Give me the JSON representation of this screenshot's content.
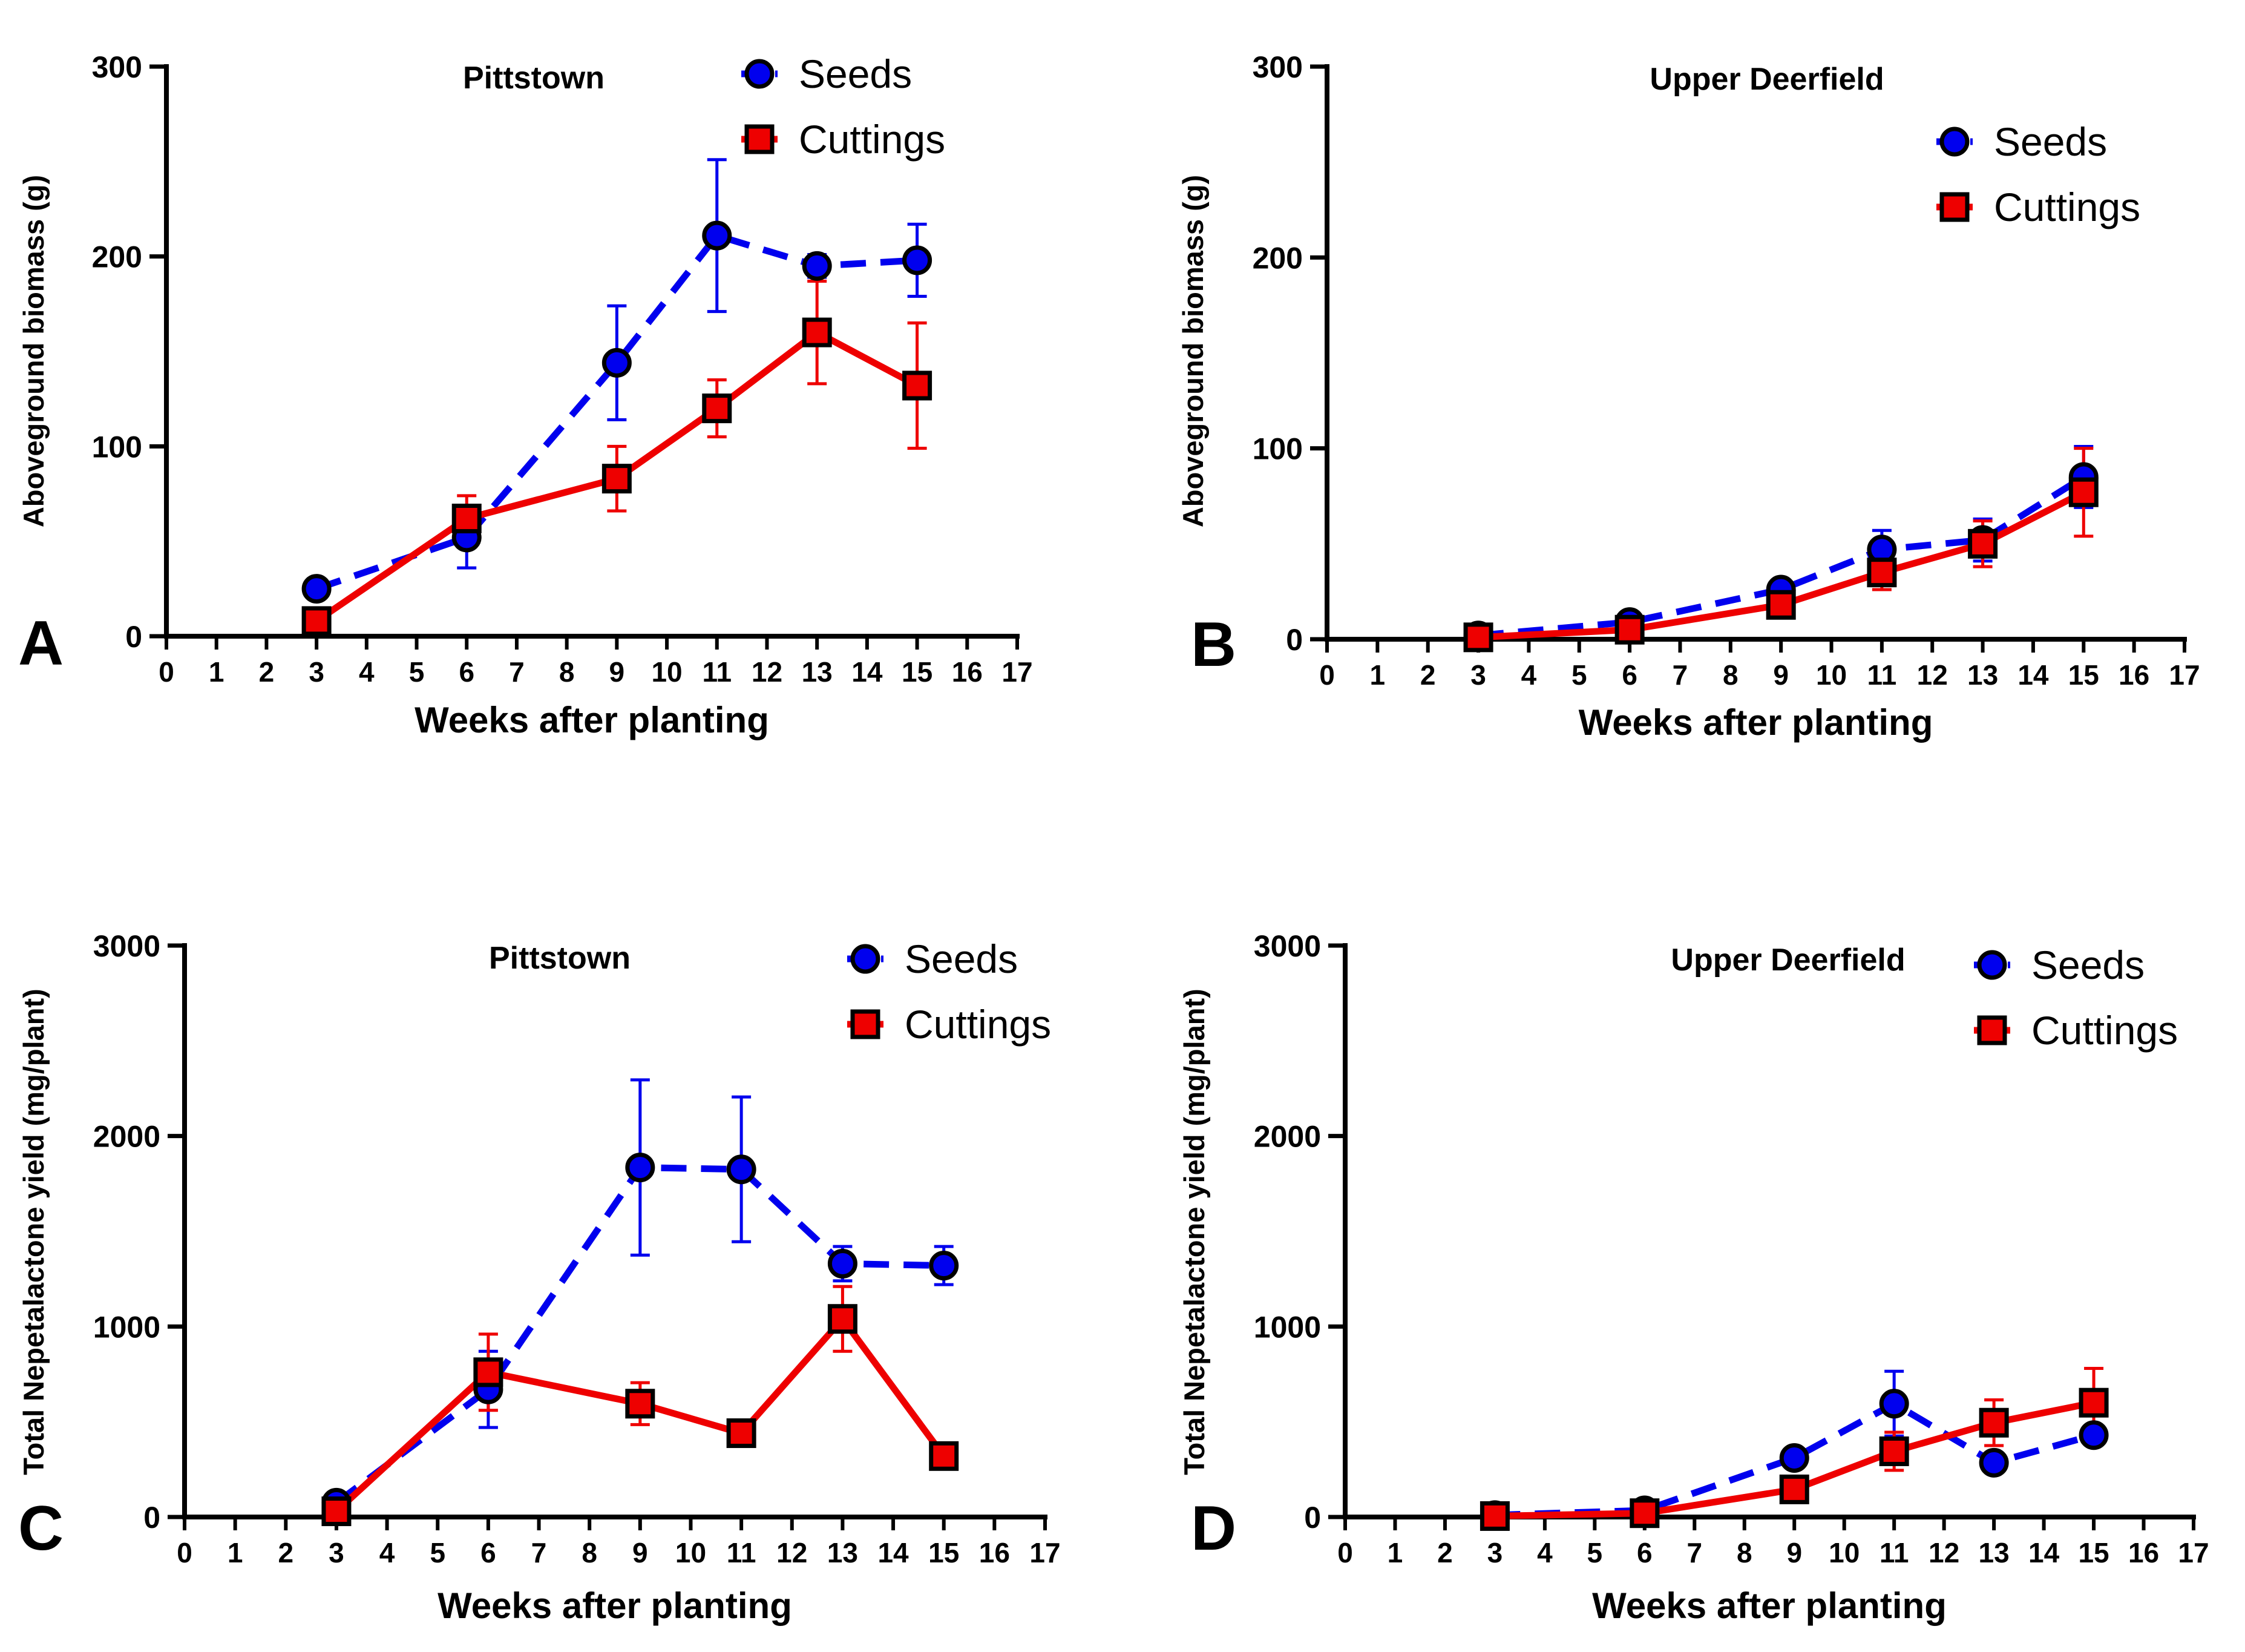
{
  "chart_data": [
    {
      "type": "line",
      "panel": "A",
      "title": "Pittstown",
      "xlabel": "Weeks after planting",
      "ylabel": "Aboveground biomass (g)",
      "xlim": [
        0,
        17
      ],
      "ylim": [
        0,
        300
      ],
      "xticks": [
        "0",
        "1",
        "2",
        "3",
        "4",
        "5",
        "6",
        "7",
        "8",
        "9",
        "10",
        "11",
        "12",
        "13",
        "14",
        "15",
        "16",
        "17"
      ],
      "yticks": [
        "0",
        "100",
        "200",
        "300"
      ],
      "legend_position": "top-right",
      "series": [
        {
          "name": "Seeds",
          "style": "dashed",
          "marker": "circle",
          "color": "#0000ee",
          "x": [
            3,
            6,
            9,
            11,
            13,
            15
          ],
          "y": [
            25,
            52,
            144,
            211,
            195,
            198
          ],
          "err": [
            3,
            16,
            30,
            40,
            6,
            19
          ]
        },
        {
          "name": "Cuttings",
          "style": "solid",
          "marker": "square",
          "color": "#ee0000",
          "x": [
            3,
            6,
            9,
            11,
            13,
            15
          ],
          "y": [
            8,
            62,
            83,
            120,
            160,
            132
          ],
          "err": [
            2,
            12,
            17,
            15,
            27,
            33
          ]
        }
      ]
    },
    {
      "type": "line",
      "panel": "B",
      "title": "Upper Deerfield",
      "xlabel": "Weeks after planting",
      "ylabel": "Aboveground biomass (g)",
      "xlim": [
        0,
        17
      ],
      "ylim": [
        0,
        300
      ],
      "xticks": [
        "0",
        "1",
        "2",
        "3",
        "4",
        "5",
        "6",
        "7",
        "8",
        "9",
        "10",
        "11",
        "12",
        "13",
        "14",
        "15",
        "16",
        "17"
      ],
      "yticks": [
        "0",
        "100",
        "200",
        "300"
      ],
      "legend_position": "top-right",
      "series": [
        {
          "name": "Seeds",
          "style": "dashed",
          "marker": "circle",
          "color": "#0000ee",
          "x": [
            3,
            6,
            9,
            11,
            13,
            15
          ],
          "y": [
            2,
            9,
            26,
            47,
            52,
            85
          ],
          "err": [
            1,
            2,
            4,
            10,
            11,
            16
          ]
        },
        {
          "name": "Cuttings",
          "style": "solid",
          "marker": "square",
          "color": "#ee0000",
          "x": [
            3,
            6,
            9,
            11,
            13,
            15
          ],
          "y": [
            1,
            5,
            18,
            35,
            50,
            77
          ],
          "err": [
            1,
            2,
            4,
            9,
            12,
            23
          ]
        }
      ]
    },
    {
      "type": "line",
      "panel": "C",
      "title": "Pittstown",
      "xlabel": "Weeks after planting",
      "ylabel": "Total Nepetalactone yield (mg/plant)",
      "xlim": [
        0,
        17
      ],
      "ylim": [
        0,
        3000
      ],
      "xticks": [
        "0",
        "1",
        "2",
        "3",
        "4",
        "5",
        "6",
        "7",
        "8",
        "9",
        "10",
        "11",
        "12",
        "13",
        "14",
        "15",
        "16",
        "17"
      ],
      "yticks": [
        "0",
        "1000",
        "2000",
        "3000"
      ],
      "legend_position": "top-right",
      "series": [
        {
          "name": "Seeds",
          "style": "dashed",
          "marker": "circle",
          "color": "#0000ee",
          "x": [
            3,
            6,
            9,
            11,
            13,
            15
          ],
          "y": [
            75,
            670,
            1835,
            1825,
            1330,
            1320
          ],
          "err": [
            15,
            200,
            460,
            380,
            90,
            100
          ]
        },
        {
          "name": "Cuttings",
          "style": "solid",
          "marker": "square",
          "color": "#ee0000",
          "x": [
            3,
            6,
            9,
            11,
            13,
            15
          ],
          "y": [
            30,
            760,
            595,
            440,
            1040,
            320
          ],
          "err": [
            10,
            200,
            110,
            40,
            170,
            40
          ]
        }
      ]
    },
    {
      "type": "line",
      "panel": "D",
      "title": "Upper Deerfield",
      "xlabel": "Weeks after planting",
      "ylabel": "Total Nepetalactone yield (mg/plant)",
      "xlim": [
        0,
        17
      ],
      "ylim": [
        0,
        3000
      ],
      "xticks": [
        "0",
        "1",
        "2",
        "3",
        "4",
        "5",
        "6",
        "7",
        "8",
        "9",
        "10",
        "11",
        "12",
        "13",
        "14",
        "15",
        "16",
        "17"
      ],
      "yticks": [
        "0",
        "1000",
        "2000",
        "3000"
      ],
      "legend_position": "top-right",
      "series": [
        {
          "name": "Seeds",
          "style": "dashed",
          "marker": "circle",
          "color": "#0000ee",
          "x": [
            3,
            6,
            9,
            11,
            13,
            15
          ],
          "y": [
            10,
            35,
            310,
            595,
            285,
            430
          ],
          "err": [
            5,
            10,
            40,
            170,
            50,
            50
          ]
        },
        {
          "name": "Cuttings",
          "style": "solid",
          "marker": "square",
          "color": "#ee0000",
          "x": [
            3,
            6,
            9,
            11,
            13,
            15
          ],
          "y": [
            5,
            20,
            145,
            345,
            495,
            600
          ],
          "err": [
            3,
            8,
            30,
            100,
            120,
            180
          ]
        }
      ]
    }
  ]
}
